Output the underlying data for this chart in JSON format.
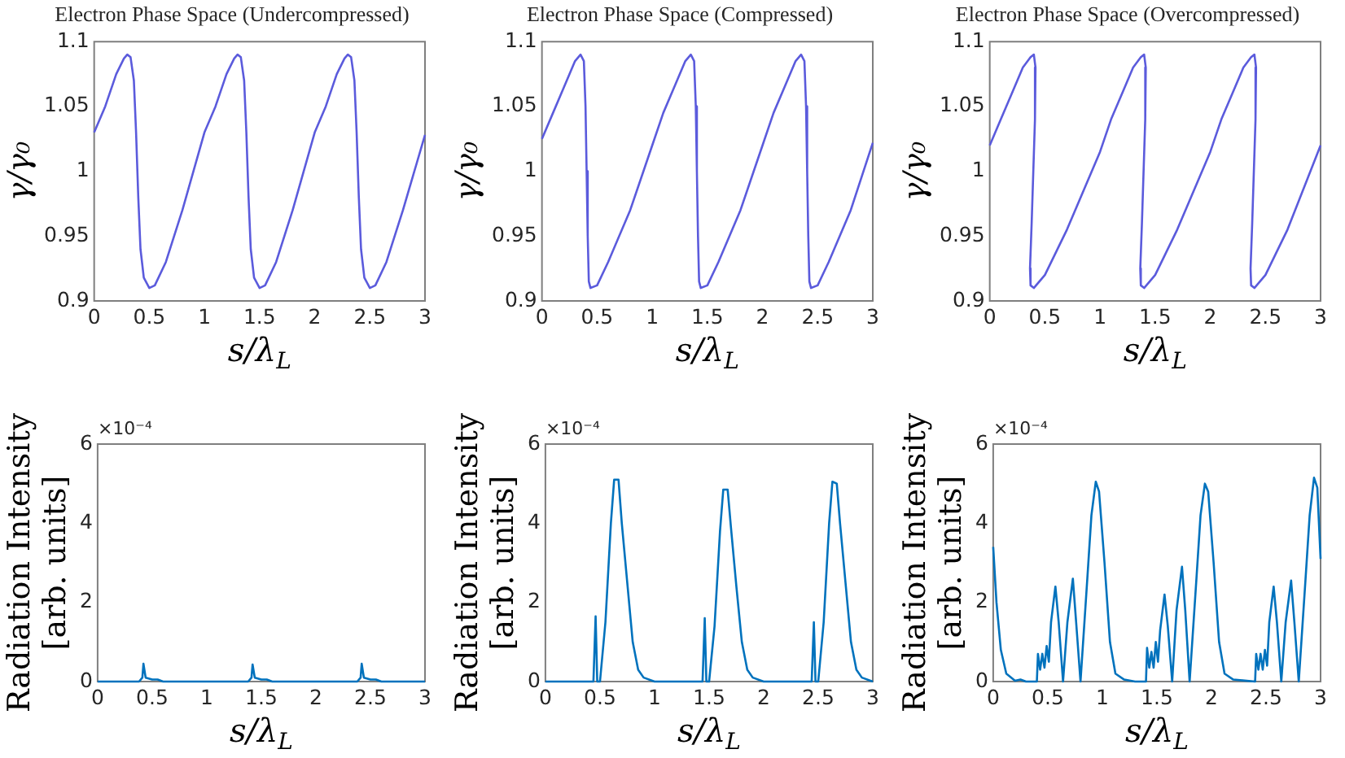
{
  "chart_data": [
    {
      "type": "line",
      "title": "Electron Phase Space (Undercompressed)",
      "xlabel": "s/λ$_{L}$",
      "ylabel": "γ/γ₀",
      "xlim": [
        0,
        3
      ],
      "xticks": [
        0,
        0.5,
        1,
        1.5,
        2,
        2.5,
        3
      ],
      "ylim": [
        0.9,
        1.1
      ],
      "yticks": [
        0.9,
        0.95,
        1,
        1.05,
        1.1
      ],
      "marker": "none",
      "series": [
        {
          "color": "#5b5bdc",
          "x": [
            0,
            0.1,
            0.2,
            0.27,
            0.3,
            0.33,
            0.36,
            0.38,
            0.4,
            0.42,
            0.45,
            0.5,
            0.55,
            0.65,
            0.8,
            1.0,
            1.1,
            1.2,
            1.27,
            1.3,
            1.33,
            1.36,
            1.38,
            1.4,
            1.42,
            1.45,
            1.5,
            1.55,
            1.65,
            1.8,
            2.0,
            2.1,
            2.2,
            2.27,
            2.3,
            2.33,
            2.36,
            2.38,
            2.4,
            2.42,
            2.45,
            2.5,
            2.55,
            2.65,
            2.8,
            3.0
          ],
          "values": [
            1.03,
            1.05,
            1.075,
            1.087,
            1.09,
            1.088,
            1.07,
            1.03,
            0.98,
            0.94,
            0.918,
            0.91,
            0.912,
            0.93,
            0.97,
            1.03,
            1.05,
            1.075,
            1.087,
            1.09,
            1.088,
            1.07,
            1.03,
            0.98,
            0.94,
            0.918,
            0.91,
            0.912,
            0.93,
            0.97,
            1.03,
            1.05,
            1.075,
            1.087,
            1.09,
            1.088,
            1.07,
            1.03,
            0.98,
            0.94,
            0.918,
            0.91,
            0.912,
            0.93,
            0.97,
            1.028
          ]
        }
      ]
    },
    {
      "type": "line",
      "title": "Electron Phase Space (Compressed)",
      "xlabel": "s/λ$_{L}$",
      "ylabel": "γ/γ₀",
      "xlim": [
        0,
        3
      ],
      "xticks": [
        0,
        0.5,
        1,
        1.5,
        2,
        2.5,
        3
      ],
      "ylim": [
        0.9,
        1.1
      ],
      "yticks": [
        0.9,
        0.95,
        1,
        1.05,
        1.1
      ],
      "marker": "none",
      "series": [
        {
          "color": "#5b5bdc",
          "x": [
            0,
            0.1,
            0.2,
            0.3,
            0.35,
            0.38,
            0.395,
            0.405,
            0.415,
            0.425,
            0.44,
            0.5,
            0.6,
            0.8,
            1.0,
            1.1,
            1.2,
            1.3,
            1.35,
            1.38,
            1.395,
            1.405,
            1.415,
            1.425,
            1.44,
            1.5,
            1.6,
            1.8,
            2.0,
            2.1,
            2.2,
            2.3,
            2.35,
            2.38,
            2.395,
            2.405,
            2.415,
            2.425,
            2.44,
            2.5,
            2.6,
            2.8,
            3.0
          ],
          "values": [
            1.025,
            1.045,
            1.065,
            1.085,
            1.09,
            1.085,
            1.05,
            1.0,
            0.95,
            0.915,
            0.91,
            0.912,
            0.93,
            0.97,
            1.02,
            1.045,
            1.065,
            1.085,
            1.09,
            1.085,
            1.05,
            1.0,
            0.95,
            0.915,
            0.91,
            0.912,
            0.93,
            0.97,
            1.02,
            1.045,
            1.065,
            1.085,
            1.09,
            1.085,
            1.05,
            1.0,
            0.95,
            0.915,
            0.91,
            0.912,
            0.93,
            0.97,
            1.022
          ]
        }
      ]
    },
    {
      "type": "line",
      "title": "Electron Phase Space (Overcompressed)",
      "xlabel": "s/λ$_{L}$",
      "ylabel": "γ/γ₀",
      "xlim": [
        0,
        3
      ],
      "xticks": [
        0,
        0.5,
        1,
        1.5,
        2,
        2.5,
        3
      ],
      "ylim": [
        0.9,
        1.1
      ],
      "yticks": [
        0.9,
        0.95,
        1,
        1.05,
        1.1
      ],
      "marker": "none",
      "series": [
        {
          "color": "#5b5bdc",
          "x": [
            0,
            0.1,
            0.2,
            0.3,
            0.37,
            0.4,
            0.415,
            0.41,
            0.395,
            0.38,
            0.365,
            0.37,
            0.4,
            0.5,
            0.7,
            1.0,
            1.1,
            1.2,
            1.3,
            1.37,
            1.4,
            1.415,
            1.41,
            1.395,
            1.38,
            1.365,
            1.37,
            1.4,
            1.5,
            1.7,
            2.0,
            2.1,
            2.2,
            2.3,
            2.37,
            2.4,
            2.415,
            2.41,
            2.395,
            2.38,
            2.365,
            2.37,
            2.4,
            2.5,
            2.7,
            3.0
          ],
          "values": [
            1.02,
            1.04,
            1.06,
            1.08,
            1.088,
            1.09,
            1.08,
            1.04,
            1.0,
            0.96,
            0.925,
            0.912,
            0.91,
            0.92,
            0.955,
            1.015,
            1.04,
            1.06,
            1.08,
            1.088,
            1.09,
            1.08,
            1.04,
            1.0,
            0.96,
            0.925,
            0.912,
            0.91,
            0.92,
            0.955,
            1.015,
            1.04,
            1.06,
            1.08,
            1.088,
            1.09,
            1.08,
            1.04,
            1.0,
            0.96,
            0.925,
            0.912,
            0.91,
            0.92,
            0.955,
            1.02
          ]
        }
      ]
    },
    {
      "type": "line",
      "xlabel": "s/λ$_{L}$",
      "ylabel": "Radiation Intensity\n[arb. units]",
      "annotations": [
        "×10⁻⁴"
      ],
      "xlim": [
        0,
        3
      ],
      "xticks": [
        0,
        0.5,
        1,
        1.5,
        2,
        2.5,
        3
      ],
      "ylim": [
        0,
        6
      ],
      "yticks": [
        0,
        2,
        4,
        6
      ],
      "marker": "none",
      "series": [
        {
          "color": "#0072bd",
          "x": [
            0,
            0.38,
            0.41,
            0.42,
            0.44,
            0.5,
            0.55,
            0.6,
            1.38,
            1.41,
            1.42,
            1.44,
            1.5,
            1.55,
            1.6,
            2.38,
            2.41,
            2.42,
            2.44,
            2.5,
            2.55,
            2.6,
            3.0
          ],
          "values": [
            0,
            0,
            0.1,
            0.45,
            0.1,
            0.05,
            0.05,
            0,
            0,
            0.1,
            0.43,
            0.1,
            0.05,
            0.05,
            0,
            0,
            0.1,
            0.45,
            0.1,
            0.05,
            0.05,
            0,
            0
          ]
        }
      ]
    },
    {
      "type": "line",
      "xlabel": "s/λ$_{L}$",
      "ylabel": "Radiation Intensity\n[arb. units]",
      "annotations": [
        "×10⁻⁴"
      ],
      "xlim": [
        0,
        3
      ],
      "xticks": [
        0,
        0.5,
        1,
        1.5,
        2,
        2.5,
        3
      ],
      "ylim": [
        0,
        6
      ],
      "yticks": [
        0,
        2,
        4,
        6
      ],
      "marker": "none",
      "series": [
        {
          "color": "#0072bd",
          "x": [
            0,
            0.44,
            0.46,
            0.475,
            0.5,
            0.55,
            0.6,
            0.63,
            0.67,
            0.7,
            0.75,
            0.8,
            0.85,
            0.9,
            1.0,
            1.44,
            1.46,
            1.475,
            1.5,
            1.55,
            1.6,
            1.63,
            1.67,
            1.7,
            1.75,
            1.8,
            1.85,
            1.9,
            2.0,
            2.44,
            2.46,
            2.475,
            2.5,
            2.55,
            2.6,
            2.63,
            2.67,
            2.7,
            2.75,
            2.8,
            2.85,
            2.9,
            3.0
          ],
          "values": [
            0,
            0,
            1.65,
            0,
            0,
            1.5,
            4,
            5.1,
            5.1,
            4,
            2.5,
            1,
            0.3,
            0.1,
            0,
            0,
            1.6,
            0,
            0,
            1.4,
            3.8,
            4.85,
            4.85,
            3.9,
            2.4,
            1,
            0.3,
            0.1,
            0,
            0,
            1.5,
            0,
            0,
            1.5,
            4,
            5.05,
            5.0,
            4,
            2.5,
            1,
            0.3,
            0.1,
            0
          ]
        }
      ]
    },
    {
      "type": "line",
      "xlabel": "s/λ$_{L}$",
      "ylabel": "Radiation Intensity\n[arb. units]",
      "annotations": [
        "×10⁻⁴"
      ],
      "xlim": [
        0,
        3
      ],
      "xticks": [
        0,
        0.5,
        1,
        1.5,
        2,
        2.5,
        3
      ],
      "ylim": [
        0,
        6
      ],
      "yticks": [
        0,
        2,
        4,
        6
      ],
      "marker": "none",
      "series": [
        {
          "color": "#0072bd",
          "x": [
            0,
            0.03,
            0.07,
            0.12,
            0.2,
            0.25,
            0.3,
            0.4,
            0.41,
            0.43,
            0.45,
            0.47,
            0.49,
            0.51,
            0.53,
            0.57,
            0.6,
            0.64,
            0.68,
            0.73,
            0.76,
            0.8,
            0.86,
            0.9,
            0.94,
            0.97,
            1.02,
            1.07,
            1.12,
            1.2,
            1.3,
            1.4,
            1.41,
            1.43,
            1.45,
            1.47,
            1.49,
            1.51,
            1.53,
            1.57,
            1.6,
            1.64,
            1.68,
            1.73,
            1.76,
            1.8,
            1.86,
            1.9,
            1.94,
            1.97,
            2.02,
            2.07,
            2.12,
            2.2,
            2.4,
            2.41,
            2.43,
            2.45,
            2.47,
            2.49,
            2.51,
            2.53,
            2.57,
            2.6,
            2.64,
            2.68,
            2.73,
            2.76,
            2.8,
            2.86,
            2.9,
            2.94,
            2.97,
            3.0
          ],
          "values": [
            3.4,
            2.0,
            0.8,
            0.2,
            0.02,
            0.05,
            0,
            0,
            0.7,
            0.3,
            0.7,
            0.35,
            0.9,
            0.5,
            1.5,
            2.4,
            1.5,
            0,
            1.5,
            2.6,
            1.5,
            0,
            2.5,
            4.2,
            5.05,
            4.8,
            3.0,
            1.0,
            0.2,
            0.05,
            0,
            0,
            0.85,
            0.35,
            0.75,
            0.35,
            1.0,
            0.5,
            1.3,
            2.2,
            1.4,
            0,
            1.8,
            2.9,
            1.8,
            0,
            2.5,
            4.2,
            5.0,
            4.8,
            3.0,
            1.0,
            0.2,
            0.05,
            0,
            0.7,
            0.3,
            0.7,
            0.3,
            0.8,
            0.4,
            1.5,
            2.4,
            1.5,
            0,
            1.5,
            2.55,
            1.5,
            0,
            2.5,
            4.2,
            5.15,
            4.9,
            3.1
          ]
        }
      ]
    }
  ]
}
